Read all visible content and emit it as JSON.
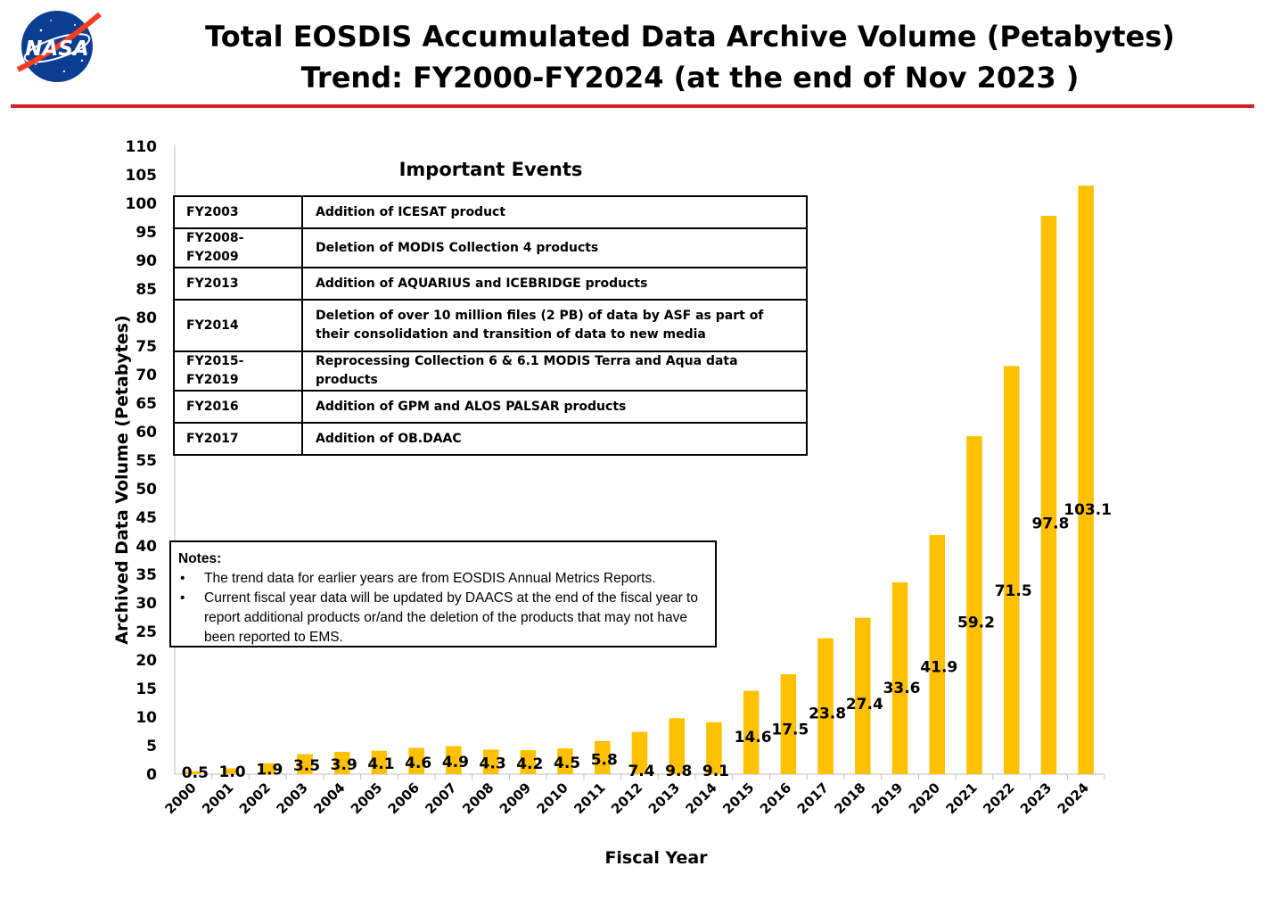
{
  "header": {
    "logo_text": "NASA",
    "title_line1": "Total EOSDIS Accumulated Data Archive Volume (Petabytes)",
    "title_line2": "Trend: FY2000-FY2024 (at the end of Nov 2023 )",
    "rule_color": "#d81f26"
  },
  "events": {
    "heading": "Important Events",
    "rows": [
      {
        "when": "FY2003",
        "what": "Addition of ICESAT product"
      },
      {
        "when": "FY2008-FY2009",
        "what": "Deletion of  MODIS Collection 4 products"
      },
      {
        "when": "FY2013",
        "what": "Addition of AQUARIUS and ICEBRIDGE products"
      },
      {
        "when": "FY2014",
        "what": "Deletion of over 10 million files (2 PB) of data by ASF as part of their consolidation and transition of data to new media"
      },
      {
        "when": "FY2015-FY2019",
        "what": "Reprocessing  Collection 6 & 6.1 MODIS Terra and Aqua data products"
      },
      {
        "when": "FY2016",
        "what": "Addition of GPM and ALOS PALSAR products"
      },
      {
        "when": "FY2017",
        "what": "Addition of OB.DAAC"
      }
    ]
  },
  "notes": {
    "title": "Notes:",
    "bullet_char": "•",
    "items": [
      "The trend data for earlier years are from EOSDIS Annual Metrics Reports.",
      "Current fiscal year data will be updated by DAACS at the end of the fiscal year to report additional products or/and the deletion of the products that may not have been reported to EMS."
    ]
  },
  "chart_data": {
    "type": "bar",
    "xlabel": "Fiscal Year",
    "ylabel": "Archived Data Volume (Petabytes)",
    "ylim": [
      0,
      110
    ],
    "yticks": [
      0,
      5,
      10,
      15,
      20,
      25,
      30,
      35,
      40,
      45,
      50,
      55,
      60,
      65,
      70,
      75,
      80,
      85,
      90,
      95,
      100,
      105,
      110
    ],
    "grid": false,
    "legend": "none",
    "bar_color": "#ffc000",
    "categories": [
      "2000",
      "2001",
      "2002",
      "2003",
      "2004",
      "2005",
      "2006",
      "2007",
      "2008",
      "2009",
      "2010",
      "2011",
      "2012",
      "2013",
      "2014",
      "2015",
      "2016",
      "2017",
      "2018",
      "2019",
      "2020",
      "2021",
      "2022",
      "2023",
      "2024"
    ],
    "values": [
      0.5,
      1.0,
      1.9,
      3.5,
      3.9,
      4.1,
      4.6,
      4.9,
      4.3,
      4.2,
      4.5,
      5.8,
      7.4,
      9.8,
      9.1,
      14.6,
      17.5,
      23.8,
      27.4,
      33.6,
      41.9,
      59.2,
      71.5,
      97.8,
      103.1
    ],
    "data_labels": [
      "0.5",
      "1.0",
      "1.9",
      "3.5",
      "3.9",
      "4.1",
      "4.6",
      "4.9",
      "4.3",
      "4.2",
      "4.5",
      "5.8",
      "7.4",
      "9.8",
      "9.1",
      "14.6",
      "17.5",
      "23.8",
      "27.4",
      "33.6",
      "41.9",
      "59.2",
      "71.5",
      "97.8",
      "103.1"
    ]
  }
}
